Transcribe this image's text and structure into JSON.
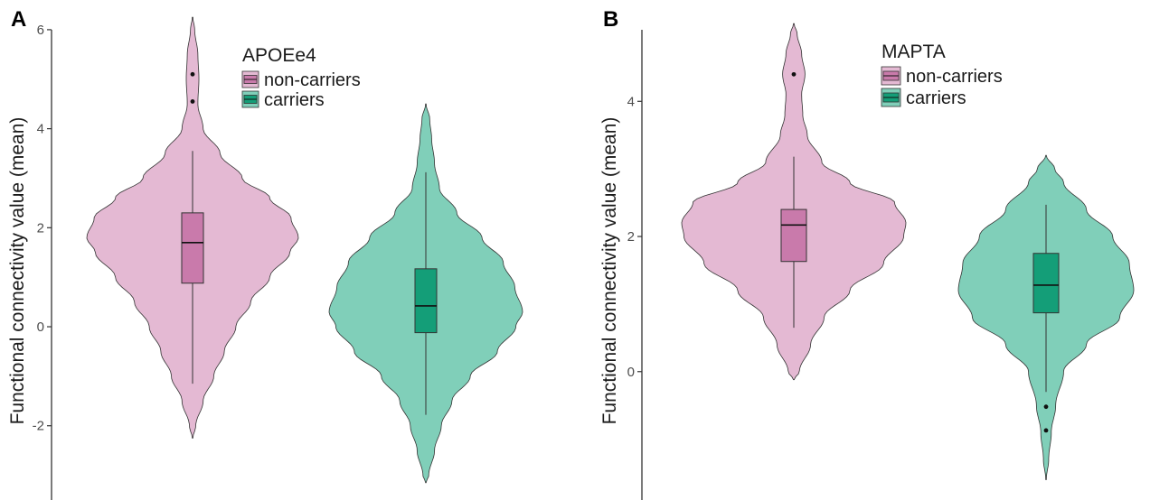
{
  "chart_data": [
    {
      "panel_label": "A",
      "type": "violin",
      "ylabel": "Functional connectivity value (mean)",
      "yticks": [
        -2,
        0,
        2,
        4,
        6
      ],
      "ylim": [
        -3.5,
        6.6
      ],
      "grid": false,
      "legend": {
        "title": "APOEe4",
        "position": "top-center",
        "entries": [
          "non-carriers",
          "carriers"
        ]
      },
      "colors": {
        "non_carriers_violin": "#e4b9d3",
        "non_carriers_box": "#c97aab",
        "carriers_violin": "#80cfb9",
        "carriers_box": "#149e78",
        "outline": "#333333"
      },
      "groups": [
        {
          "name": "non-carriers",
          "min": -2.25,
          "max": 6.25,
          "box": {
            "q1": 0.88,
            "median": 1.7,
            "q3": 2.3,
            "whisker_low": -1.15,
            "whisker_high": 3.55
          },
          "outliers": [
            5.1,
            4.55
          ],
          "density": [
            [
              -2.25,
              0.003
            ],
            [
              -2.0,
              0.03
            ],
            [
              -1.5,
              0.1
            ],
            [
              -1.0,
              0.2
            ],
            [
              -0.5,
              0.3
            ],
            [
              0.0,
              0.41
            ],
            [
              0.5,
              0.55
            ],
            [
              1.0,
              0.73
            ],
            [
              1.5,
              0.92
            ],
            [
              1.8,
              1.0
            ],
            [
              2.2,
              0.93
            ],
            [
              2.6,
              0.73
            ],
            [
              3.0,
              0.47
            ],
            [
              3.5,
              0.26
            ],
            [
              4.0,
              0.1
            ],
            [
              4.5,
              0.05
            ],
            [
              5.0,
              0.06
            ],
            [
              5.5,
              0.05
            ],
            [
              6.0,
              0.02
            ],
            [
              6.25,
              0.003
            ]
          ]
        },
        {
          "name": "carriers",
          "min": -3.15,
          "max": 4.5,
          "box": {
            "q1": -0.12,
            "median": 0.42,
            "q3": 1.17,
            "whisker_low": -1.78,
            "whisker_high": 3.12
          },
          "outliers": [],
          "density": [
            [
              -3.15,
              0.003
            ],
            [
              -3.0,
              0.03
            ],
            [
              -2.5,
              0.09
            ],
            [
              -2.0,
              0.16
            ],
            [
              -1.5,
              0.27
            ],
            [
              -1.0,
              0.46
            ],
            [
              -0.5,
              0.74
            ],
            [
              0.0,
              0.93
            ],
            [
              0.3,
              1.0
            ],
            [
              0.8,
              0.92
            ],
            [
              1.3,
              0.8
            ],
            [
              1.8,
              0.58
            ],
            [
              2.3,
              0.32
            ],
            [
              2.8,
              0.14
            ],
            [
              3.3,
              0.09
            ],
            [
              3.8,
              0.06
            ],
            [
              4.2,
              0.04
            ],
            [
              4.5,
              0.003
            ]
          ]
        }
      ]
    },
    {
      "panel_label": "B",
      "type": "violin",
      "ylabel": "Functional connectivity value (mean)",
      "yticks": [
        0,
        2,
        4
      ],
      "ylim": [
        -1.9,
        5.5
      ],
      "grid": false,
      "legend": {
        "title": "MAPTA",
        "position": "top-center",
        "entries": [
          "non-carriers",
          "carriers"
        ]
      },
      "colors": {
        "non_carriers_violin": "#e4b9d3",
        "non_carriers_box": "#c97aab",
        "carriers_violin": "#80cfb9",
        "carriers_box": "#149e78",
        "outline": "#333333"
      },
      "groups": [
        {
          "name": "non-carriers",
          "min": -0.12,
          "max": 5.15,
          "box": {
            "q1": 1.63,
            "median": 2.17,
            "q3": 2.4,
            "whisker_low": 0.65,
            "whisker_high": 3.18
          },
          "outliers": [
            4.4
          ],
          "density": [
            [
              -0.12,
              0.003
            ],
            [
              0.0,
              0.05
            ],
            [
              0.4,
              0.15
            ],
            [
              0.8,
              0.27
            ],
            [
              1.2,
              0.5
            ],
            [
              1.6,
              0.8
            ],
            [
              2.0,
              0.98
            ],
            [
              2.2,
              1.0
            ],
            [
              2.5,
              0.9
            ],
            [
              2.8,
              0.5
            ],
            [
              3.1,
              0.25
            ],
            [
              3.5,
              0.12
            ],
            [
              3.8,
              0.08
            ],
            [
              4.1,
              0.07
            ],
            [
              4.4,
              0.1
            ],
            [
              4.7,
              0.07
            ],
            [
              5.0,
              0.03
            ],
            [
              5.15,
              0.003
            ]
          ]
        },
        {
          "name": "carriers",
          "min": -1.6,
          "max": 3.2,
          "box": {
            "q1": 0.87,
            "median": 1.28,
            "q3": 1.75,
            "whisker_low": -0.3,
            "whisker_high": 2.47
          },
          "outliers": [
            -0.52,
            -0.87
          ],
          "density": [
            [
              -1.6,
              0.003
            ],
            [
              -1.3,
              0.03
            ],
            [
              -0.9,
              0.06
            ],
            [
              -0.5,
              0.11
            ],
            [
              0.0,
              0.2
            ],
            [
              0.4,
              0.46
            ],
            [
              0.8,
              0.84
            ],
            [
              1.2,
              1.0
            ],
            [
              1.6,
              0.95
            ],
            [
              2.0,
              0.76
            ],
            [
              2.4,
              0.46
            ],
            [
              2.8,
              0.2
            ],
            [
              3.0,
              0.1
            ],
            [
              3.2,
              0.003
            ]
          ]
        }
      ]
    }
  ]
}
